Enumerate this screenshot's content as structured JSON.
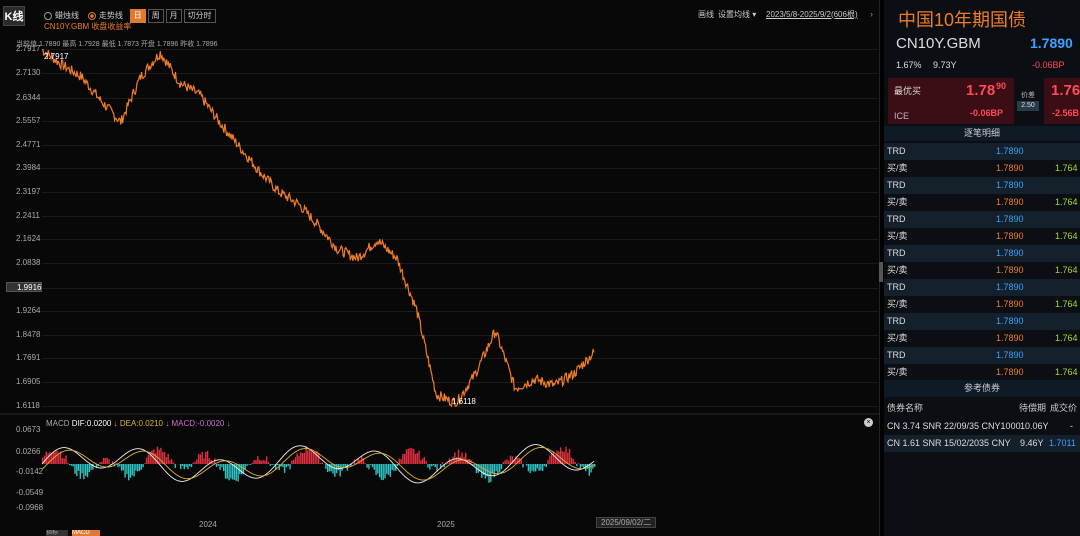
{
  "toolbar": {
    "k_label": "K线",
    "opt1": "蜡烛线",
    "opt2": "走势线",
    "periods": [
      "日",
      "周",
      "月",
      "切分时"
    ],
    "draw": "画线",
    "settings": "设置均线",
    "range": "2023/5/8-2025/9/2(606根)",
    "sub_label": "CN10Y.GBM 收盘收益率"
  },
  "info_line": "当前值 1.7890 最高 1.7928 最低 1.7873 开盘 1.7896 昨收 1.7896",
  "y_axis": [
    "2.7917",
    "2.7130",
    "2.6344",
    "2.5557",
    "2.4771",
    "2.3984",
    "2.3197",
    "2.2411",
    "2.1624",
    "2.0838",
    "1.9916",
    "1.9264",
    "1.8478",
    "1.7691",
    "1.6905",
    "1.6118"
  ],
  "highlight_y": "1.9916",
  "marker_high": "2.7917",
  "marker_low": "1.6118",
  "macd": {
    "label": "MACD",
    "dif": "DIF:0.0200",
    "dea": "DEA:0.0210",
    "macd": "MACD:-0.0020",
    "y_axis": [
      "0.0673",
      "0.0266",
      "-0.0142",
      "-0.0549",
      "-0.0968"
    ]
  },
  "x_axis": [
    "2024",
    "2025"
  ],
  "cursor_date": "2025/09/02/二",
  "bottom_tabs": [
    "指标",
    "MACD"
  ],
  "chart_data": {
    "type": "line",
    "ylim": [
      1.6118,
      2.7917
    ],
    "x": [
      "2023/5/8",
      "2023/6",
      "2023/7",
      "2023/8",
      "2023/9",
      "2023/10",
      "2023/11",
      "2023/12",
      "2024/1",
      "2024/2",
      "2024/3",
      "2024/4",
      "2024/5",
      "2024/6",
      "2024/7",
      "2024/8",
      "2024/9",
      "2024/10",
      "2024/11",
      "2024/12",
      "2025/1",
      "2025/2",
      "2025/3",
      "2025/4",
      "2025/5",
      "2025/6",
      "2025/7",
      "2025/8",
      "2025/9/2"
    ],
    "series": [
      {
        "values": [
          2.79,
          2.74,
          2.7,
          2.62,
          2.55,
          2.7,
          2.78,
          2.68,
          2.64,
          2.55,
          2.47,
          2.39,
          2.32,
          2.28,
          2.21,
          2.13,
          2.1,
          2.16,
          2.1,
          1.93,
          1.65,
          1.62,
          1.72,
          1.86,
          1.67,
          1.7,
          1.68,
          1.72,
          1.789
        ]
      }
    ]
  },
  "side": {
    "title": "中国10年期国债",
    "code": "CN10Y.GBM",
    "price": "1.7890",
    "pct": "1.67%",
    "tenor": "9.73Y",
    "change": "-0.06BP",
    "best_bid_label": "最优买",
    "bid_big": "1.78",
    "bid_small": "90",
    "bid_change": "-0.06BP",
    "bid_src": "ICE",
    "spread_label": "价差",
    "spread_val": "2.50",
    "ask_big": "1.76",
    "ask_change": "-2.56B",
    "tick_title": "逐笔明细",
    "ticks": [
      {
        "type": "TRD",
        "price": "1.7890",
        "other": ""
      },
      {
        "type": "买/卖",
        "price": "1.7890",
        "other": "1.764"
      },
      {
        "type": "TRD",
        "price": "1.7890",
        "other": ""
      },
      {
        "type": "买/卖",
        "price": "1.7890",
        "other": "1.764"
      },
      {
        "type": "TRD",
        "price": "1.7890",
        "other": ""
      },
      {
        "type": "买/卖",
        "price": "1.7890",
        "other": "1.764"
      },
      {
        "type": "TRD",
        "price": "1.7890",
        "other": ""
      },
      {
        "type": "买/卖",
        "price": "1.7890",
        "other": "1.764"
      },
      {
        "type": "TRD",
        "price": "1.7890",
        "other": ""
      },
      {
        "type": "买/卖",
        "price": "1.7890",
        "other": "1.764"
      },
      {
        "type": "TRD",
        "price": "1.7890",
        "other": ""
      },
      {
        "type": "买/卖",
        "price": "1.7890",
        "other": "1.764"
      },
      {
        "type": "TRD",
        "price": "1.7890",
        "other": ""
      },
      {
        "type": "买/卖",
        "price": "1.7890",
        "other": "1.764"
      }
    ],
    "ref_title": "参考债券",
    "ref_headers": [
      "债券名称",
      "待偿期",
      "成交价"
    ],
    "ref_rows": [
      {
        "name": "CN 3.74 SNR 22/09/35 CNY1000",
        "term": "10.06Y",
        "price": "-"
      },
      {
        "name": "CN 1.61 SNR 15/02/2035 CNY",
        "term": "9.46Y",
        "price": "1.7011"
      }
    ]
  }
}
